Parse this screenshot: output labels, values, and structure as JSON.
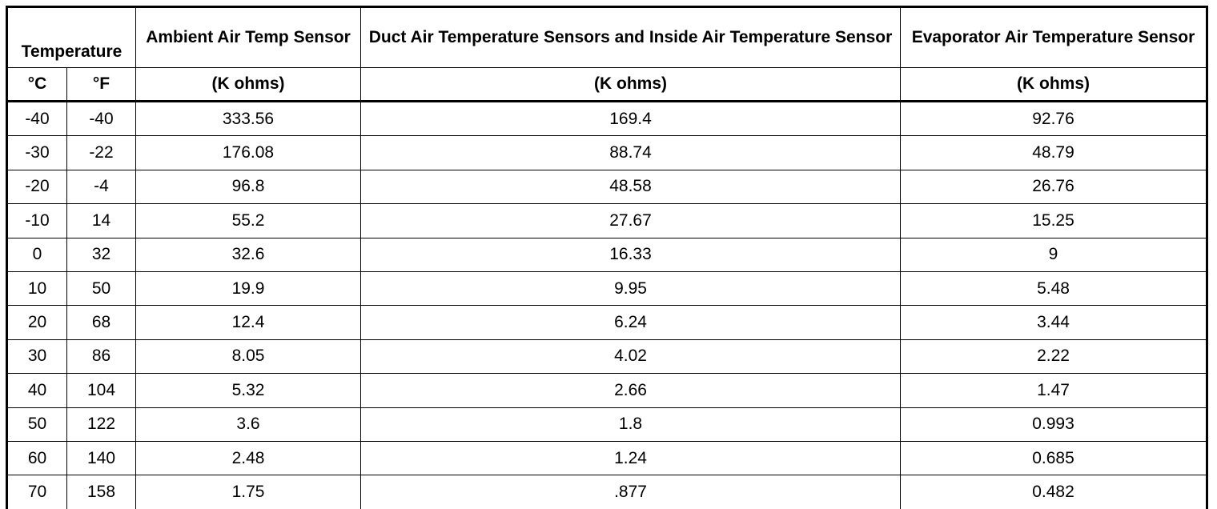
{
  "header": {
    "temperature": "Temperature",
    "columns": [
      "Ambient Air Temp Sensor",
      "Duct Air Temperature Sensors and Inside Air Temperature Sensor",
      "Evaporator Air Temperature Sensor"
    ]
  },
  "units": [
    "°C",
    "°F",
    "(K ohms)",
    "(K ohms)",
    "(K ohms)"
  ],
  "rows": [
    [
      "-40",
      "-40",
      "333.56",
      "169.4",
      "92.76"
    ],
    [
      "-30",
      "-22",
      "176.08",
      "88.74",
      "48.79"
    ],
    [
      "-20",
      "-4",
      "96.8",
      "48.58",
      "26.76"
    ],
    [
      "-10",
      "14",
      "55.2",
      "27.67",
      "15.25"
    ],
    [
      "0",
      "32",
      "32.6",
      "16.33",
      "9"
    ],
    [
      "10",
      "50",
      "19.9",
      "9.95",
      "5.48"
    ],
    [
      "20",
      "68",
      "12.4",
      "6.24",
      "3.44"
    ],
    [
      "30",
      "86",
      "8.05",
      "4.02",
      "2.22"
    ],
    [
      "40",
      "104",
      "5.32",
      "2.66",
      "1.47"
    ],
    [
      "50",
      "122",
      "3.6",
      "1.8",
      "0.993"
    ],
    [
      "60",
      "140",
      "2.48",
      "1.24",
      "0.685"
    ],
    [
      "70",
      "158",
      "1.75",
      ".877",
      "0.482"
    ]
  ]
}
